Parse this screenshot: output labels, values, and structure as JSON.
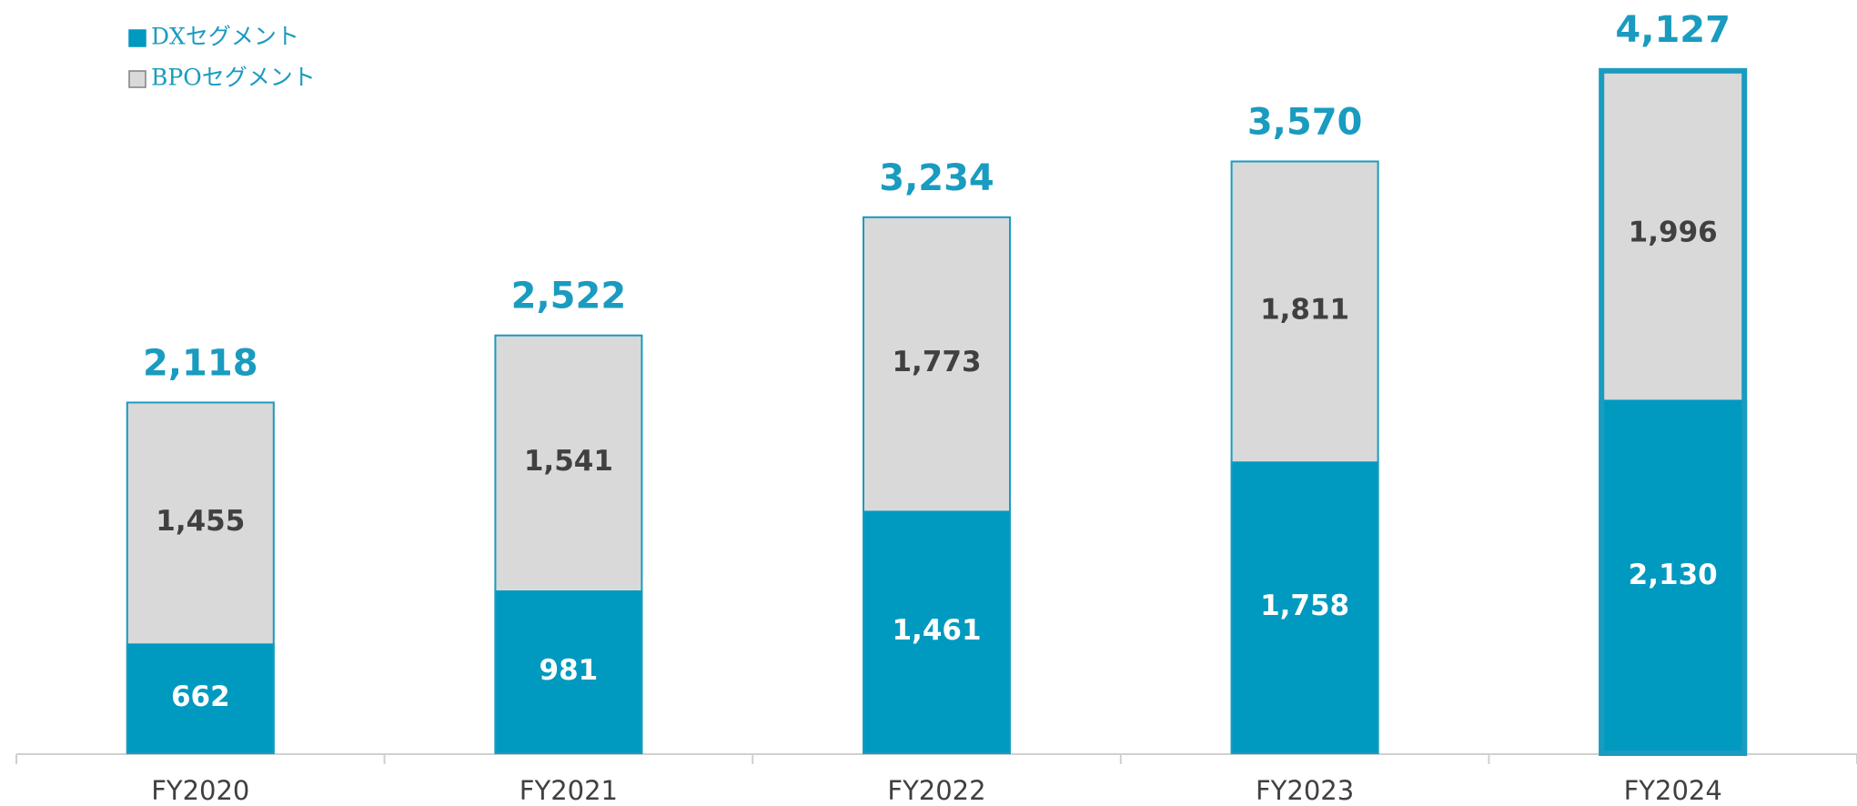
{
  "chart_data": {
    "type": "stacked_bar",
    "categories": [
      "FY2020",
      "FY2021",
      "FY2022",
      "FY2023",
      "FY2024"
    ],
    "series": [
      {
        "name": "DXセグメント",
        "color": "#0099bf",
        "label_color": "#ffffff",
        "values": [
          662,
          981,
          1461,
          1758,
          2130
        ],
        "value_labels": [
          "662",
          "981",
          "1,461",
          "1,758",
          "2,130"
        ]
      },
      {
        "name": "BPOセグメント",
        "color": "#d9d9d9",
        "label_color": "#404040",
        "values": [
          1455,
          1541,
          1773,
          1811,
          1996
        ],
        "value_labels": [
          "1,455",
          "1,541",
          "1,773",
          "1,811",
          "1,996"
        ]
      }
    ],
    "totals": {
      "color": "#1a9bc0",
      "values": [
        2118,
        2522,
        3234,
        3570,
        4127
      ],
      "value_labels": [
        "2,118",
        "2,522",
        "3,234",
        "3,570",
        "4,127"
      ]
    },
    "highlight_index": 4,
    "legend": "top-left"
  }
}
